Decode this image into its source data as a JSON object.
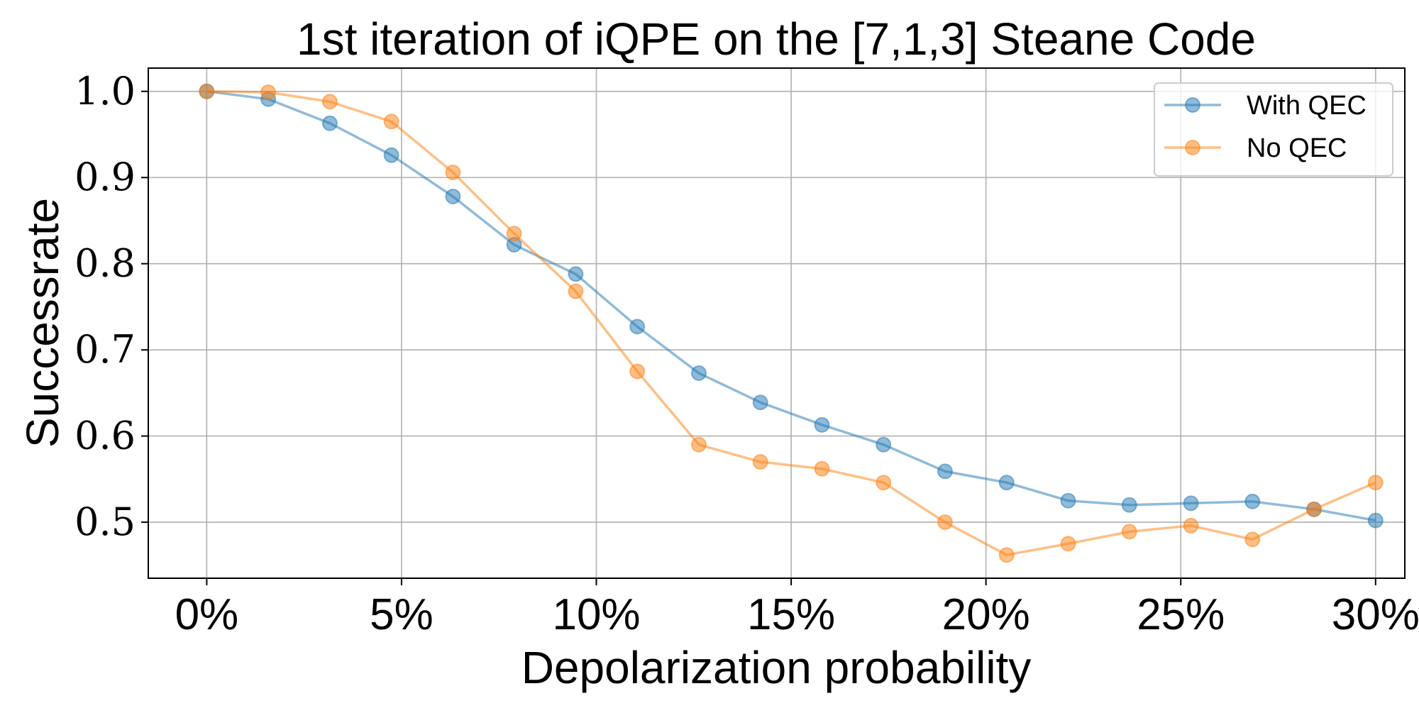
{
  "chart_data": {
    "type": "line",
    "title": "1st iteration of iQPE on the [7,1,3] Steane Code",
    "xlabel": "Depolarization probability",
    "ylabel": "Successrate",
    "xlim": [
      -0.015,
      0.3075
    ],
    "ylim": [
      0.435,
      1.027
    ],
    "grid": true,
    "legend_position": "top-right",
    "xticks": [
      {
        "value": 0.0,
        "label": "0%"
      },
      {
        "value": 0.05,
        "label": "5%"
      },
      {
        "value": 0.1,
        "label": "10%"
      },
      {
        "value": 0.15,
        "label": "15%"
      },
      {
        "value": 0.2,
        "label": "20%"
      },
      {
        "value": 0.25,
        "label": "25%"
      },
      {
        "value": 0.3,
        "label": "30%"
      }
    ],
    "yticks": [
      {
        "value": 0.5,
        "label": "0.5"
      },
      {
        "value": 0.6,
        "label": "0.6"
      },
      {
        "value": 0.7,
        "label": "0.7"
      },
      {
        "value": 0.8,
        "label": "0.8"
      },
      {
        "value": 0.9,
        "label": "0.9"
      },
      {
        "value": 1.0,
        "label": "1.0"
      }
    ],
    "x": [
      0.0,
      0.0158,
      0.0316,
      0.0474,
      0.0632,
      0.0789,
      0.0947,
      0.1105,
      0.1263,
      0.1421,
      0.1579,
      0.1737,
      0.1895,
      0.2053,
      0.2211,
      0.2368,
      0.2526,
      0.2684,
      0.2842,
      0.3
    ],
    "series": [
      {
        "name": "With QEC",
        "color": "#1f77b4",
        "values": [
          1.0,
          0.991,
          0.963,
          0.926,
          0.878,
          0.822,
          0.788,
          0.727,
          0.673,
          0.639,
          0.613,
          0.59,
          0.559,
          0.546,
          0.525,
          0.52,
          0.522,
          0.524,
          0.515,
          0.502
        ]
      },
      {
        "name": "No QEC",
        "color": "#ff7f0e",
        "values": [
          1.0,
          0.999,
          0.988,
          0.965,
          0.906,
          0.835,
          0.768,
          0.675,
          0.59,
          0.57,
          0.562,
          0.546,
          0.5,
          0.462,
          0.475,
          0.489,
          0.496,
          0.48,
          0.515,
          0.546
        ]
      }
    ]
  }
}
